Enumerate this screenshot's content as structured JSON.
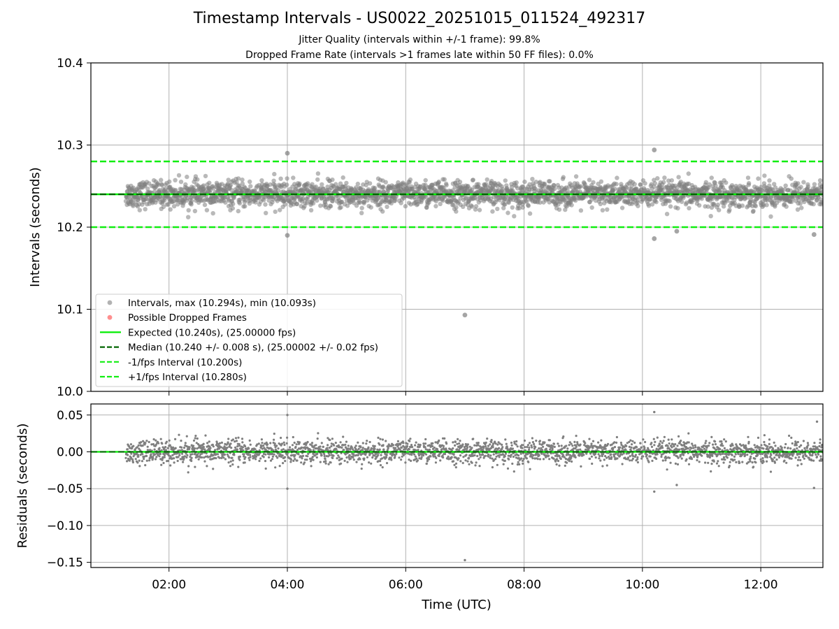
{
  "title": "Timestamp Intervals - US0022_20251015_011524_492317",
  "subtitle_lines": [
    "Jitter Quality (intervals within +/-1 frame): 99.8%",
    "Dropped Frame Rate (intervals >1 frames late within 50 FF files): 0.0%"
  ],
  "colors": {
    "points": "#7f7f7f",
    "dropped": "#ff4444",
    "expected": "#00ee00",
    "median": "#006400",
    "interval": "#11ee11",
    "grid": "#b0b0b0"
  },
  "chart_data": [
    {
      "type": "scatter",
      "panel": "top",
      "ylabel": "Intervals (seconds)",
      "ylim": [
        10.0,
        10.4
      ],
      "yticks": [
        10.0,
        10.1,
        10.2,
        10.3,
        10.4
      ],
      "ytick_labels": [
        "10.0",
        "10.1",
        "10.2",
        "10.3",
        "10.4"
      ],
      "xlim_hours": [
        0.68,
        13.05
      ],
      "grid": true,
      "legend_position": "lower-left",
      "expected": 10.24,
      "median": 10.24,
      "minus_interval": 10.2,
      "plus_interval": 10.28,
      "bulk": {
        "x_start_hours": 1.27,
        "x_end_hours": 13.05,
        "center": 10.24,
        "spread": 0.008
      },
      "outliers": [
        {
          "x": 4.0,
          "y": 10.29
        },
        {
          "x": 4.0,
          "y": 10.19
        },
        {
          "x": 7.0,
          "y": 10.093
        },
        {
          "x": 10.2,
          "y": 10.294
        },
        {
          "x": 10.2,
          "y": 10.186
        },
        {
          "x": 10.58,
          "y": 10.195
        },
        {
          "x": 12.9,
          "y": 10.191
        }
      ],
      "legend": [
        {
          "kind": "point",
          "color_key": "points",
          "label": "Intervals, max (10.294s), min (10.093s)"
        },
        {
          "kind": "point",
          "color_key": "dropped",
          "label": "Possible Dropped Frames"
        },
        {
          "kind": "solid",
          "color_key": "expected",
          "label": "Expected (10.240s), (25.00000 fps)"
        },
        {
          "kind": "dashed",
          "color_key": "median",
          "label": "Median (10.240 +/- 0.008 s), (25.00002 +/- 0.02 fps)"
        },
        {
          "kind": "dashed",
          "color_key": "interval",
          "label": "-1/fps Interval (10.200s)"
        },
        {
          "kind": "dashed",
          "color_key": "interval",
          "label": "+1/fps Interval (10.280s)"
        }
      ]
    },
    {
      "type": "scatter",
      "panel": "bottom",
      "xlabel": "Time (UTC)",
      "ylabel": "Residuals (seconds)",
      "ylim": [
        -0.157,
        0.065
      ],
      "yticks": [
        0.05,
        0.0,
        -0.05,
        -0.1,
        -0.15
      ],
      "ytick_labels": [
        "0.05",
        "0.00",
        "−0.05",
        "−0.10",
        "−0.15"
      ],
      "xlim_hours": [
        0.68,
        13.05
      ],
      "xticks_hours": [
        2,
        4,
        6,
        8,
        10,
        12
      ],
      "xtick_labels": [
        "02:00",
        "04:00",
        "06:00",
        "08:00",
        "10:00",
        "12:00"
      ],
      "grid": true,
      "bulk": {
        "x_start_hours": 1.27,
        "x_end_hours": 13.05,
        "center": 0.0,
        "spread": 0.008
      },
      "outliers": [
        {
          "x": 4.0,
          "y": 0.05
        },
        {
          "x": 4.0,
          "y": -0.05
        },
        {
          "x": 7.0,
          "y": -0.147
        },
        {
          "x": 10.2,
          "y": 0.054
        },
        {
          "x": 10.2,
          "y": -0.054
        },
        {
          "x": 10.58,
          "y": -0.045
        },
        {
          "x": 12.9,
          "y": -0.049
        },
        {
          "x": 12.95,
          "y": 0.041
        }
      ]
    }
  ]
}
